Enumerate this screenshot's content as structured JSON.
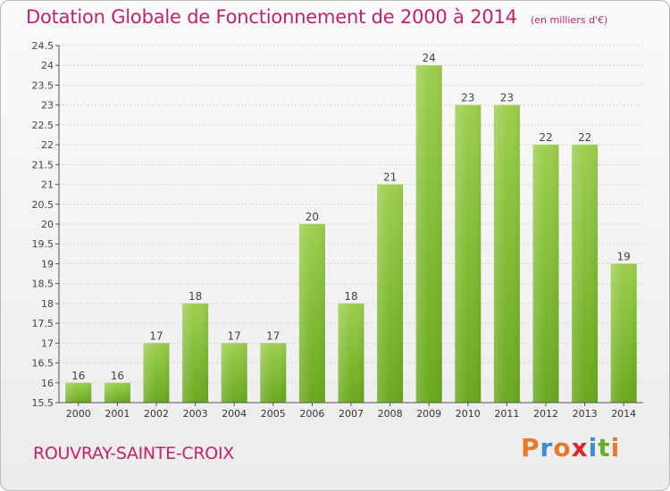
{
  "chart_data": {
    "type": "bar",
    "title": "Dotation Globale de Fonctionnement de 2000 à 2014",
    "subtitle": "(en milliers d'€)",
    "xlabel": "",
    "ylabel": "",
    "categories": [
      "2000",
      "2001",
      "2002",
      "2003",
      "2004",
      "2005",
      "2006",
      "2007",
      "2008",
      "2009",
      "2010",
      "2011",
      "2012",
      "2013",
      "2014"
    ],
    "values": [
      16,
      16,
      17,
      18,
      17,
      17,
      20,
      18,
      21,
      24,
      23,
      23,
      22,
      22,
      19
    ],
    "ylim": [
      15.5,
      24.5
    ],
    "yticks": [
      "15.5",
      "16",
      "16.5",
      "17",
      "17.5",
      "18",
      "18.5",
      "19",
      "19.5",
      "20",
      "20.5",
      "21",
      "21.5",
      "22",
      "22.5",
      "23",
      "23.5",
      "24",
      "24.5"
    ],
    "grid": true
  },
  "footer": {
    "commune": "ROUVRAY-SAINTE-CROIX",
    "brand_letters": [
      "P",
      "r",
      "o",
      "x",
      "i",
      "t",
      "i"
    ]
  },
  "colors": {
    "accent": "#c0226d",
    "bar_light": "#9ccf4f",
    "bar_dark": "#6aa81e",
    "brand": [
      "#e8792a",
      "#3b8ed4",
      "#e8792a",
      "#d9262b",
      "#3b8ed4",
      "#6cae2b",
      "#e8792a"
    ]
  }
}
